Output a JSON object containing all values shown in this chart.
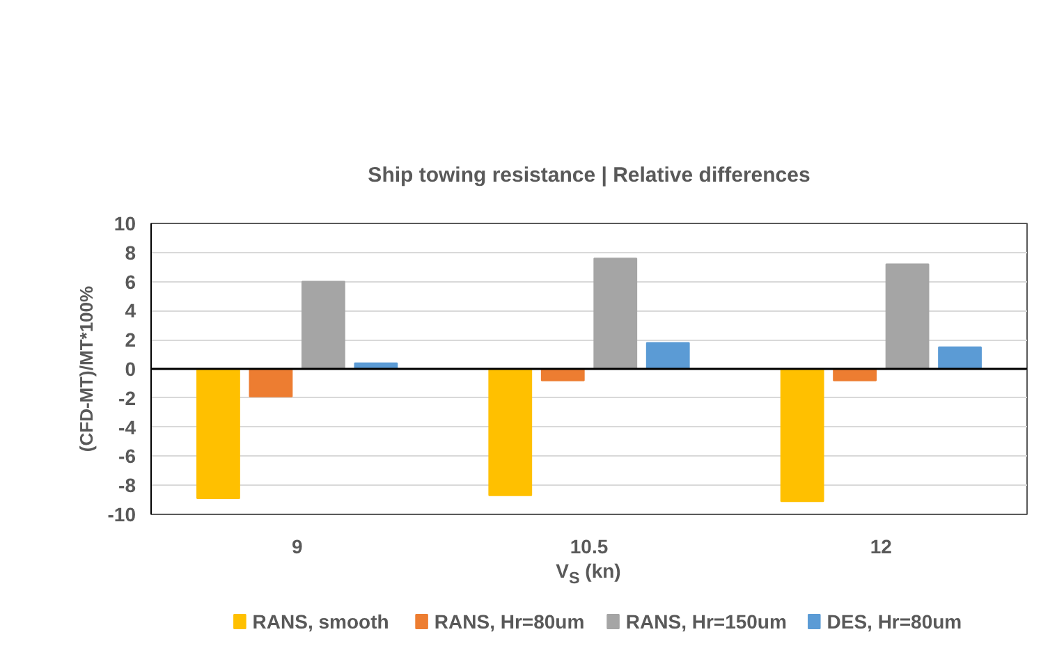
{
  "chart_data": {
    "type": "bar",
    "title": "Ship towing resistance | Relative differences",
    "xlabel": "V$_{S}$ (kn)",
    "ylabel": "(CFD-MT)/MT*100%",
    "categories": [
      "9",
      "10.5",
      "12"
    ],
    "series": [
      {
        "name": "RANS, smooth",
        "color": "#ffc000",
        "values": [
          -8.9,
          -8.7,
          -9.1
        ]
      },
      {
        "name": "RANS, Hr=80um",
        "color": "#ed7d31",
        "values": [
          -1.9,
          -0.8,
          -0.8
        ]
      },
      {
        "name": "RANS, Hr=150um",
        "color": "#a5a5a5",
        "values": [
          6.0,
          7.6,
          7.2
        ]
      },
      {
        "name": "DES, Hr=80um",
        "color": "#5b9bd5",
        "values": [
          0.4,
          1.8,
          1.5
        ]
      }
    ],
    "ylim": [
      -10,
      10
    ],
    "yticks": [
      -10,
      -8,
      -6,
      -4,
      -2,
      0,
      2,
      4,
      6,
      8,
      10
    ],
    "grid": "y",
    "legend": "bottom"
  }
}
